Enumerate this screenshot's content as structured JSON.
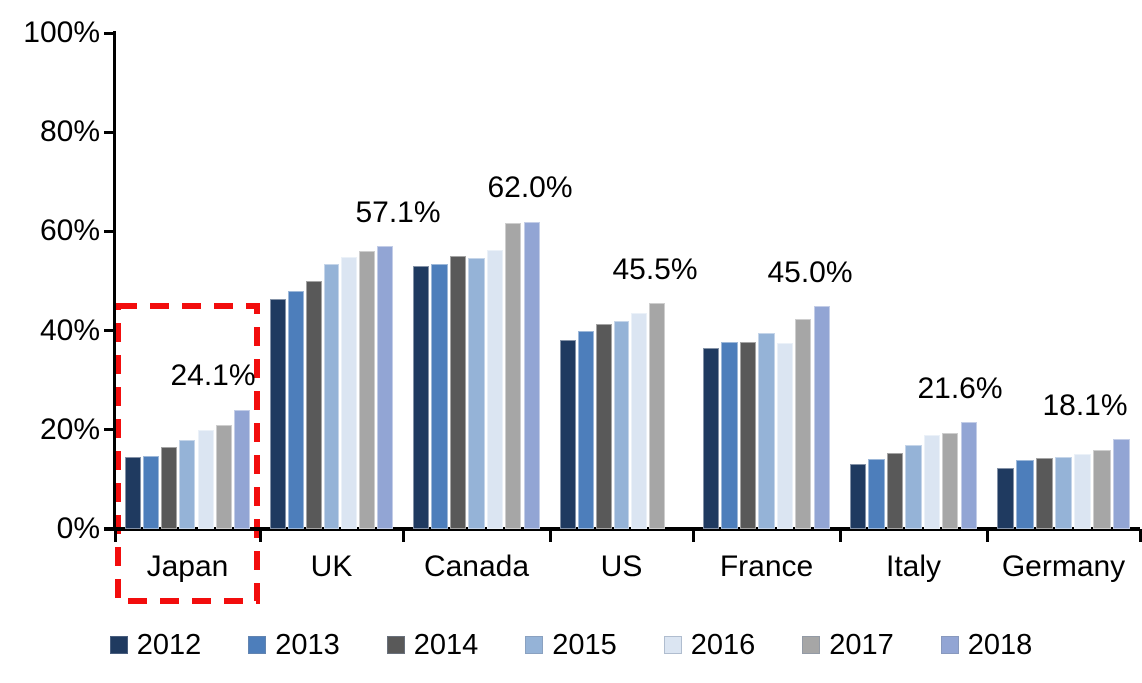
{
  "chart_data": {
    "type": "grouped-bar",
    "title": "",
    "categories": [
      "Japan",
      "UK",
      "Canada",
      "US",
      "France",
      "Italy",
      "Germany"
    ],
    "series": [
      {
        "name": "2012",
        "color": "#1F3A60",
        "values": [
          14.6,
          46.4,
          53.0,
          38.2,
          36.5,
          13.1,
          12.3
        ]
      },
      {
        "name": "2013",
        "color": "#4D7EBB",
        "values": [
          14.8,
          48.0,
          53.5,
          40.0,
          37.7,
          14.1,
          13.9
        ]
      },
      {
        "name": "2014",
        "color": "#595959",
        "values": [
          16.6,
          50.0,
          55.0,
          41.3,
          37.8,
          15.3,
          14.3
        ]
      },
      {
        "name": "2015",
        "color": "#95B3D7",
        "values": [
          18.0,
          53.4,
          54.6,
          42.0,
          39.5,
          17.0,
          14.5
        ]
      },
      {
        "name": "2016",
        "color": "#DBE5F2",
        "values": [
          20.0,
          54.8,
          56.2,
          43.6,
          37.5,
          19.0,
          15.2
        ]
      },
      {
        "name": "2017",
        "color": "#A6A6A6",
        "values": [
          21.0,
          56.0,
          61.7,
          45.5,
          42.3,
          19.3,
          16.0
        ]
      },
      {
        "name": "2018",
        "color": "#92A5D4",
        "values": [
          24.1,
          57.1,
          62.0,
          null,
          45.0,
          21.6,
          18.1
        ]
      }
    ],
    "data_labels": [
      "24.1%",
      "57.1%",
      "62.0%",
      "45.5%",
      "45.0%",
      "21.6%",
      "18.1%"
    ],
    "y_axis": {
      "tick_labels": [
        "0%",
        "20%",
        "40%",
        "60%",
        "80%",
        "100%"
      ],
      "tick_values": [
        0,
        20,
        40,
        60,
        80,
        100
      ],
      "ylim": [
        0,
        100
      ]
    },
    "xlabel": "",
    "ylabel": "",
    "grid": false,
    "legend": {
      "position": "bottom",
      "entries": [
        "2012",
        "2013",
        "2014",
        "2015",
        "2016",
        "2017",
        "2018"
      ]
    },
    "highlight": {
      "category": "Japan",
      "style": "red-dashed-box",
      "color": "#F20D0D"
    },
    "axis_color": "#000000",
    "background_color": "#FFFFFF"
  }
}
